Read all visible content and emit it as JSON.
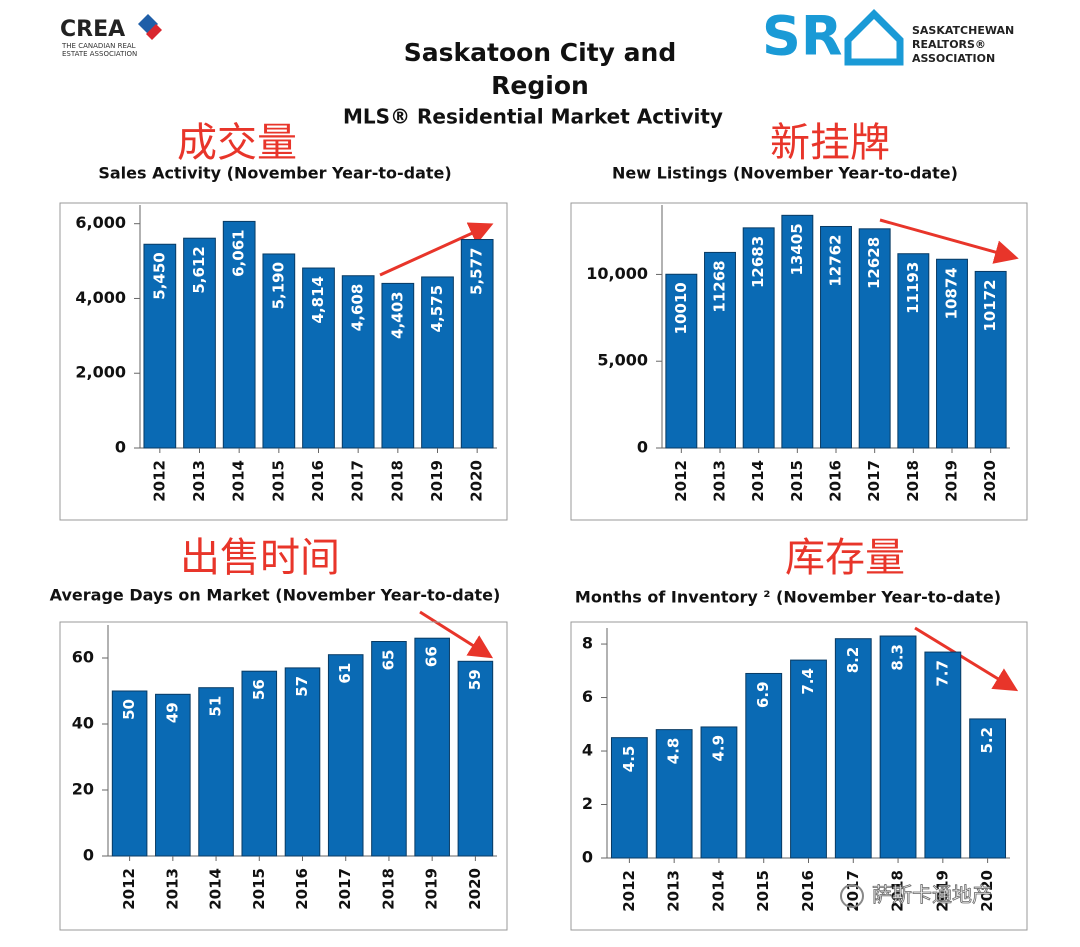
{
  "header": {
    "crea_logo": "CREA",
    "crea_tagline": [
      "THE CANADIAN REAL",
      "ESTATE ASSOCIATION"
    ],
    "title": [
      "Saskatoon City and",
      "Region"
    ],
    "subtitle": "MLS® Residential Market Activity",
    "sra_logo": "SR",
    "sra_name": [
      "SASKATCHEWAN",
      "REALTORS®",
      "ASSOCIATION"
    ]
  },
  "watermark": "萨斯卡通地产",
  "chart_data": [
    {
      "type": "bar",
      "title": "Sales Activity (November Year-to-date)",
      "annotation": "成交量",
      "categories": [
        "2012",
        "2013",
        "2014",
        "2015",
        "2016",
        "2017",
        "2018",
        "2019",
        "2020"
      ],
      "values": [
        5450,
        5612,
        6061,
        5190,
        4814,
        4608,
        4403,
        4575,
        5577
      ],
      "value_labels": [
        "5,450",
        "5,612",
        "6,061",
        "5,190",
        "4,814",
        "4,608",
        "4,403",
        "4,575",
        "5,577"
      ],
      "color": "#0a6ab4",
      "ylim": [
        0,
        6500
      ],
      "yticks": [
        0,
        {
          "value": 2000,
          "label": "2,000"
        },
        {
          "value": 4000,
          "label": "4,000"
        },
        {
          "value": 6000,
          "label": "6,000"
        }
      ]
    },
    {
      "type": "bar",
      "title": "New Listings (November Year-to-date)",
      "annotation": "新挂牌",
      "categories": [
        "2012",
        "2013",
        "2014",
        "2015",
        "2016",
        "2017",
        "2018",
        "2019",
        "2020"
      ],
      "values": [
        10010,
        11268,
        12683,
        13405,
        12762,
        12628,
        11193,
        10874,
        10172
      ],
      "color": "#0a6ab4",
      "ylim": [
        0,
        14000
      ],
      "yticks": [
        0,
        {
          "value": 5000,
          "label": "5,000"
        },
        {
          "value": 10000,
          "label": "10,000"
        }
      ]
    },
    {
      "type": "bar",
      "title": "Average Days on Market (November Year-to-date)",
      "annotation": "出售时间",
      "categories": [
        "2012",
        "2013",
        "2014",
        "2015",
        "2016",
        "2017",
        "2018",
        "2019",
        "2020"
      ],
      "values": [
        50,
        49,
        51,
        56,
        57,
        61,
        65,
        66,
        59
      ],
      "color": "#0a6ab4",
      "ylim": [
        0,
        70
      ],
      "yticks": [
        0,
        20,
        40,
        60
      ]
    },
    {
      "type": "bar",
      "title": "Months of Inventory ² (November Year-to-date)",
      "annotation": "库存量",
      "categories": [
        "2012",
        "2013",
        "2014",
        "2015",
        "2016",
        "2017",
        "2018",
        "2019",
        "2020"
      ],
      "values": [
        4.5,
        4.8,
        4.9,
        6.9,
        7.4,
        8.2,
        8.3,
        7.7,
        5.2
      ],
      "color": "#0a6ab4",
      "ylim": [
        0,
        8.6
      ],
      "yticks": [
        0,
        2,
        4,
        6,
        8
      ]
    }
  ]
}
